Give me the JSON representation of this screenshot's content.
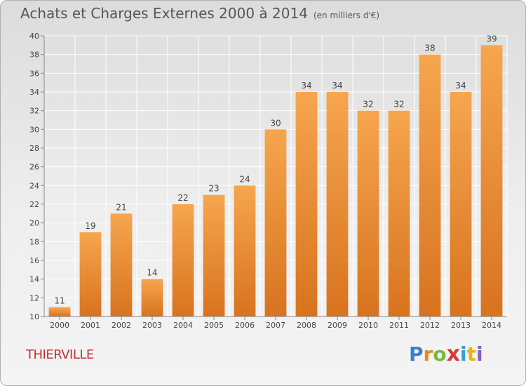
{
  "title": "Achats et Charges Externes 2000 à 2014",
  "subtitle": "(en milliers d'€)",
  "city": "THIERVILLE",
  "brand": [
    "P",
    "r",
    "o",
    "x",
    "i",
    "t",
    "i"
  ],
  "colors": {
    "bar_top": "#f6a64e",
    "bar_bottom": "#d8731f",
    "title": "#555555",
    "city": "#c5302e"
  },
  "chart_data": {
    "type": "bar",
    "title": "Achats et Charges Externes 2000 à 2014",
    "subtitle": "(en milliers d'€)",
    "xlabel": "",
    "ylabel": "",
    "categories": [
      "2000",
      "2001",
      "2002",
      "2003",
      "2004",
      "2005",
      "2006",
      "2007",
      "2008",
      "2009",
      "2010",
      "2011",
      "2012",
      "2013",
      "2014"
    ],
    "values": [
      11,
      19,
      21,
      14,
      22,
      23,
      24,
      30,
      34,
      34,
      32,
      32,
      38,
      34,
      39
    ],
    "ylim": [
      10,
      40
    ],
    "yticks": [
      10,
      12,
      14,
      16,
      18,
      20,
      22,
      24,
      26,
      28,
      30,
      32,
      34,
      36,
      38,
      40
    ],
    "grid": true,
    "data_labels": true
  }
}
